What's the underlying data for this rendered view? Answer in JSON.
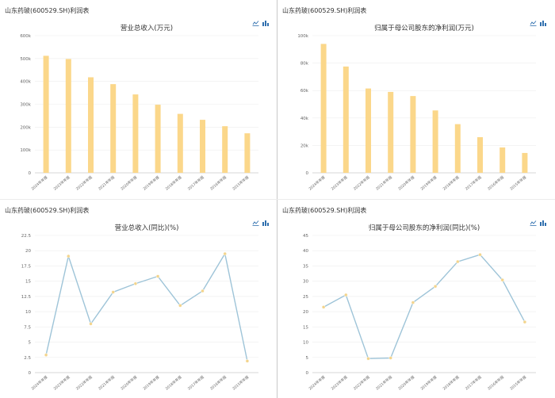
{
  "colors": {
    "bar": "#fbd78a",
    "line": "#9ec4d8",
    "point": "#f3d48c",
    "grid": "#eeeeee",
    "axis": "#cccccc",
    "icon": "#2f6fae"
  },
  "toolbar_icons": [
    "line-chart-icon",
    "bar-chart-icon"
  ],
  "panels": [
    {
      "header": "山东药玻(600529.SH)利润表"
    },
    {
      "header": "山东药玻(600529.SH)利润表"
    },
    {
      "header": "山东药玻(600529.SH)利润表"
    },
    {
      "header": "山东药玻(600529.SH)利润表"
    }
  ],
  "chart_data": [
    {
      "type": "bar",
      "title": "营业总收入(万元)",
      "categories": [
        "2024年年报",
        "2023年年报",
        "2022年年报",
        "2021年年报",
        "2020年年报",
        "2019年年报",
        "2018年年报",
        "2017年年报",
        "2016年年报",
        "2015年年报"
      ],
      "values": [
        512000,
        498000,
        418000,
        388000,
        343000,
        298000,
        258000,
        232000,
        204000,
        173000
      ],
      "ylim": [
        0,
        600000
      ],
      "yticks": [
        0,
        100000,
        200000,
        300000,
        400000,
        500000,
        600000
      ],
      "ytick_labels": [
        "0",
        "100k",
        "200k",
        "300k",
        "400k",
        "500k",
        "600k"
      ]
    },
    {
      "type": "bar",
      "title": "归属于母公司股东的净利润(万元)",
      "categories": [
        "2024年年报",
        "2023年年报",
        "2022年年报",
        "2021年年报",
        "2020年年报",
        "2019年年报",
        "2018年年报",
        "2017年年报",
        "2016年年报",
        "2015年年报"
      ],
      "values": [
        94000,
        77500,
        61500,
        59000,
        56000,
        45500,
        35500,
        26000,
        18500,
        14500
      ],
      "ylim": [
        0,
        100000
      ],
      "yticks": [
        0,
        20000,
        40000,
        60000,
        80000,
        100000
      ],
      "ytick_labels": [
        "0",
        "20k",
        "40k",
        "60k",
        "80k",
        "100k"
      ]
    },
    {
      "type": "line",
      "title": "营业总收入(同比)(%)",
      "categories": [
        "2024年年报",
        "2023年年报",
        "2022年年报",
        "2021年年报",
        "2020年年报",
        "2019年年报",
        "2018年年报",
        "2017年年报",
        "2016年年报",
        "2015年年报"
      ],
      "values": [
        2.9,
        19.1,
        8.0,
        13.2,
        14.6,
        15.8,
        11.0,
        13.4,
        19.5,
        1.9
      ],
      "ylim": [
        0,
        22.5
      ],
      "yticks": [
        0,
        2.5,
        5,
        7.5,
        10,
        12.5,
        15,
        17.5,
        20,
        22.5
      ],
      "ytick_labels": [
        "0",
        "2.5",
        "5",
        "7.5",
        "10",
        "12.5",
        "15",
        "17.5",
        "20",
        "22.5"
      ]
    },
    {
      "type": "line",
      "title": "归属于母公司股东的净利润(同比)(%)",
      "categories": [
        "2024年年报",
        "2023年年报",
        "2022年年报",
        "2021年年报",
        "2020年年报",
        "2019年年报",
        "2018年年报",
        "2017年年报",
        "2016年年报",
        "2015年年报"
      ],
      "values": [
        21.5,
        25.5,
        4.6,
        4.8,
        23.0,
        28.3,
        36.4,
        38.7,
        30.4,
        16.6
      ],
      "ylim": [
        0,
        45
      ],
      "yticks": [
        0,
        5,
        10,
        15,
        20,
        25,
        30,
        35,
        40,
        45
      ],
      "ytick_labels": [
        "0",
        "5",
        "10",
        "15",
        "20",
        "25",
        "30",
        "35",
        "40",
        "45"
      ]
    }
  ]
}
